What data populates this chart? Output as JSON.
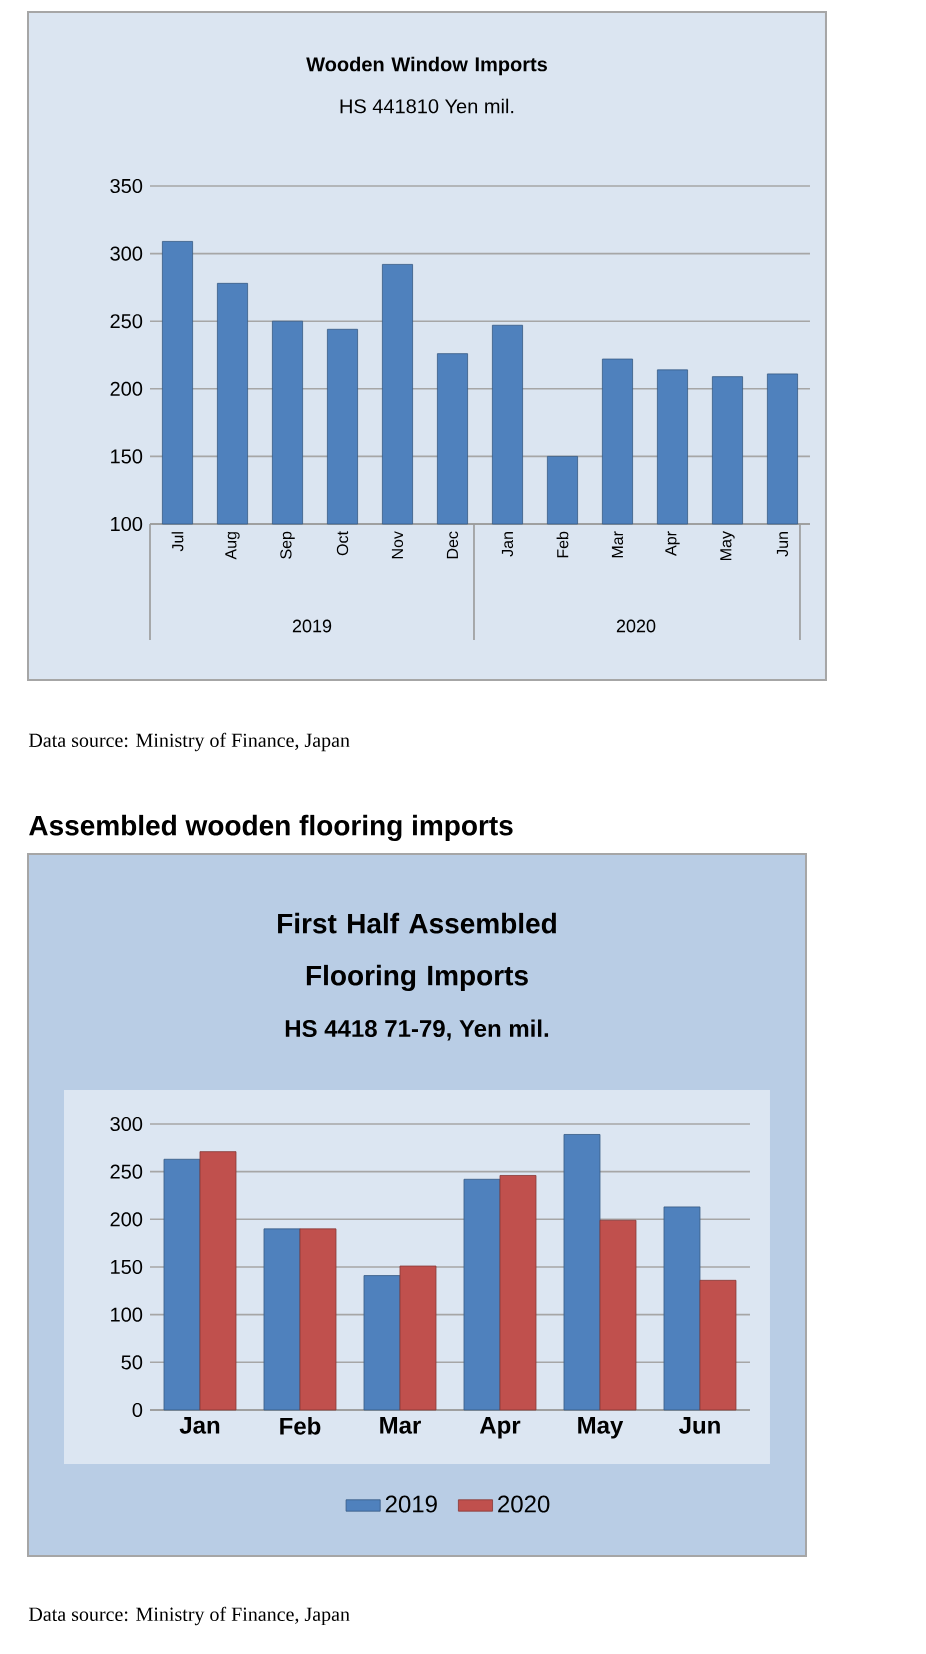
{
  "chart_data": [
    {
      "type": "bar",
      "title": "Wooden Window Imports",
      "subtitle": "HS 441810 Yen mil.",
      "categories": [
        "Jul",
        "Aug",
        "Sep",
        "Oct",
        "Nov",
        "Dec",
        "Jan",
        "Feb",
        "Mar",
        "Apr",
        "May",
        "Jun"
      ],
      "values": [
        309,
        278,
        250,
        244,
        292,
        226,
        247,
        150,
        222,
        214,
        209,
        211
      ],
      "color": "#4f81bd",
      "ylim": [
        100,
        350
      ],
      "yticks": [
        100,
        150,
        200,
        250,
        300,
        350
      ],
      "grid": "y",
      "annotations": [
        "2019",
        "2020",
        "Data source: Ministry of Finance, Japan"
      ]
    },
    {
      "type": "bar",
      "title": "First Half Assembled Flooring Imports",
      "subtitle": "HS 4418 71-79, Yen mil.",
      "categories": [
        "Jan",
        "Feb",
        "Mar",
        "Apr",
        "May",
        "Jun"
      ],
      "series": [
        {
          "name": "2019",
          "color": "#4f81bd",
          "values": [
            263,
            190,
            141,
            242,
            289,
            213
          ]
        },
        {
          "name": "2020",
          "color": "#c0504d",
          "values": [
            271,
            190,
            151,
            246,
            199,
            136
          ]
        }
      ],
      "ylim": [
        0,
        300
      ],
      "yticks": [
        0,
        50,
        100,
        150,
        200,
        250,
        300
      ],
      "grid": "y",
      "legend": "bottom",
      "annotations": [
        "Assembled wooden flooring imports",
        "Data source: Ministry of Finance, Japan"
      ]
    }
  ]
}
